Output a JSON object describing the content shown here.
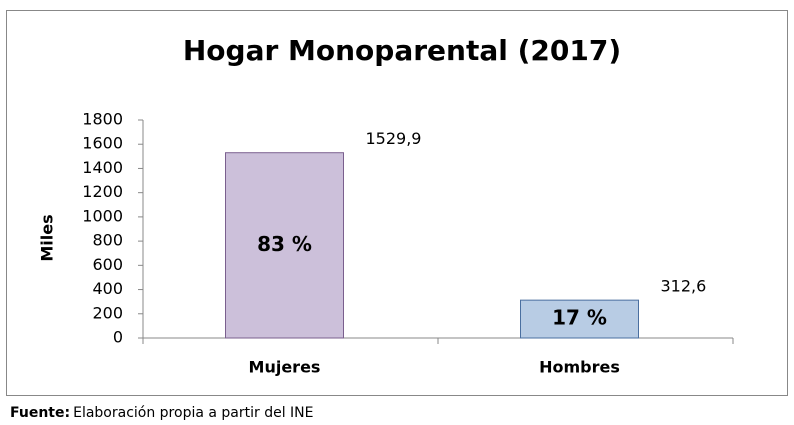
{
  "chart_data": {
    "type": "bar",
    "title": "Hogar Monoparental (2017)",
    "y_label": "Miles",
    "categories": [
      "Mujeres",
      "Hombres"
    ],
    "values": [
      1529.9,
      312.6
    ],
    "value_labels": [
      "1529,9",
      "312,6"
    ],
    "share_labels": [
      "83 %",
      "17 %"
    ],
    "colors": [
      "#ccc0da",
      "#b8cce4"
    ],
    "ylim": [
      0,
      1800
    ],
    "yticks": [
      0,
      200,
      400,
      600,
      800,
      1000,
      1200,
      1400,
      1600,
      1800
    ],
    "grid": false,
    "source": {
      "label": "Fuente:",
      "text": "Elaboración propia a partir del INE"
    }
  }
}
